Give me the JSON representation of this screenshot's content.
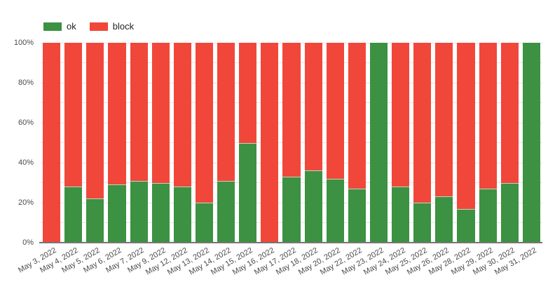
{
  "legend": {
    "position": "top-left",
    "items": [
      {
        "label": "ok",
        "color": "#3c9142"
      },
      {
        "label": "block",
        "color": "#f1473a"
      }
    ]
  },
  "colors": {
    "ok": "#3c9142",
    "block": "#f1473a",
    "gridline": "#e2e2e2",
    "axis_line": "#757575",
    "axis_text": "#4a4a4a",
    "legend_text": "#222222",
    "background": "#ffffff"
  },
  "chart_data": {
    "type": "bar",
    "stacked": true,
    "percent_stacked": true,
    "title": "",
    "xlabel": "",
    "ylabel": "",
    "ylim": [
      0,
      100
    ],
    "y_ticks": [
      {
        "label": "0%",
        "value": 0
      },
      {
        "label": "20%",
        "value": 20
      },
      {
        "label": "40%",
        "value": 40
      },
      {
        "label": "60%",
        "value": 60
      },
      {
        "label": "80%",
        "value": 80
      },
      {
        "label": "100%",
        "value": 100
      }
    ],
    "y_minor_gridline_step": 10,
    "grid": true,
    "legend_position": "top-left",
    "categories": [
      "May 3, 2022",
      "May 4, 2022",
      "May 5, 2022",
      "May 6, 2022",
      "May 7, 2022",
      "May 9, 2022",
      "May 12, 2022",
      "May 13, 2022",
      "May 14, 2022",
      "May 15, 2022",
      "May 16, 2022",
      "May 17, 2022",
      "May 18, 2022",
      "May 20, 2022",
      "May 22, 2022",
      "May 23, 2022",
      "May 24, 2022",
      "May 25, 2022",
      "May 26, 2022",
      "May 28, 2022",
      "May 29, 2022",
      "May 30, 2022",
      "May 31, 2022"
    ],
    "series": [
      {
        "name": "ok",
        "color": "#3c9142",
        "values": [
          0,
          28,
          22,
          29,
          31,
          30,
          28,
          20,
          31,
          50,
          0,
          33,
          36,
          32,
          27,
          100,
          28,
          20,
          23,
          17,
          27,
          30,
          100
        ]
      },
      {
        "name": "block",
        "color": "#f1473a",
        "values": [
          100,
          72,
          78,
          71,
          69,
          70,
          72,
          80,
          69,
          50,
          100,
          67,
          64,
          68,
          73,
          0,
          72,
          80,
          77,
          83,
          73,
          70,
          0
        ]
      }
    ]
  }
}
